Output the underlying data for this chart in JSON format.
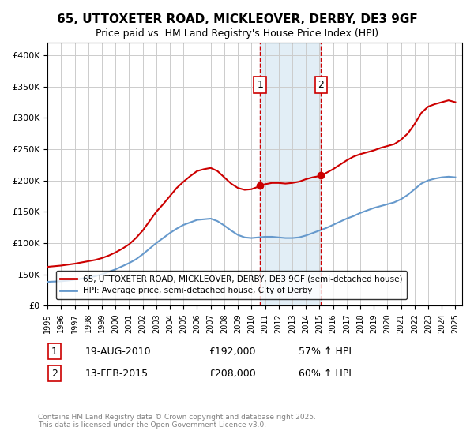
{
  "title": "65, UTTOXETER ROAD, MICKLEOVER, DERBY, DE3 9GF",
  "subtitle": "Price paid vs. HM Land Registry's House Price Index (HPI)",
  "xlabel": "",
  "ylabel": "",
  "ylim": [
    0,
    420000
  ],
  "xlim": [
    1995,
    2025.5
  ],
  "yticks": [
    0,
    50000,
    100000,
    150000,
    200000,
    250000,
    300000,
    350000,
    400000
  ],
  "ytick_labels": [
    "£0",
    "£50K",
    "£100K",
    "£150K",
    "£200K",
    "£250K",
    "£300K",
    "£350K",
    "£400K"
  ],
  "xticks": [
    1995,
    1996,
    1997,
    1998,
    1999,
    2000,
    2001,
    2002,
    2003,
    2004,
    2005,
    2006,
    2007,
    2008,
    2009,
    2010,
    2011,
    2012,
    2013,
    2014,
    2015,
    2016,
    2017,
    2018,
    2019,
    2020,
    2021,
    2022,
    2023,
    2024,
    2025
  ],
  "sale1_date": 2010.63,
  "sale1_price": 192000,
  "sale1_label": "1",
  "sale1_date_str": "19-AUG-2010",
  "sale1_hpi_pct": "57% ↑ HPI",
  "sale2_date": 2015.12,
  "sale2_price": 208000,
  "sale2_label": "2",
  "sale2_date_str": "13-FEB-2015",
  "sale2_hpi_pct": "60% ↑ HPI",
  "red_line_color": "#cc0000",
  "blue_line_color": "#6699cc",
  "shade_color": "#d0e4f0",
  "grid_color": "#cccccc",
  "background_color": "#ffffff",
  "legend1_label": "65, UTTOXETER ROAD, MICKLEOVER, DERBY, DE3 9GF (semi-detached house)",
  "legend2_label": "HPI: Average price, semi-detached house, City of Derby",
  "footnote": "Contains HM Land Registry data © Crown copyright and database right 2025.\nThis data is licensed under the Open Government Licence v3.0.",
  "red_x": [
    1995.0,
    1995.5,
    1996.0,
    1996.5,
    1997.0,
    1997.5,
    1998.0,
    1998.5,
    1999.0,
    1999.5,
    2000.0,
    2000.5,
    2001.0,
    2001.5,
    2002.0,
    2002.5,
    2003.0,
    2003.5,
    2004.0,
    2004.5,
    2005.0,
    2005.5,
    2006.0,
    2006.5,
    2007.0,
    2007.5,
    2008.0,
    2008.5,
    2009.0,
    2009.5,
    2010.0,
    2010.5,
    2010.63,
    2011.0,
    2011.5,
    2012.0,
    2012.5,
    2013.0,
    2013.5,
    2014.0,
    2014.5,
    2015.0,
    2015.12,
    2015.5,
    2016.0,
    2016.5,
    2017.0,
    2017.5,
    2018.0,
    2018.5,
    2019.0,
    2019.5,
    2020.0,
    2020.5,
    2021.0,
    2021.5,
    2022.0,
    2022.5,
    2023.0,
    2023.5,
    2024.0,
    2024.5,
    2025.0
  ],
  "red_y": [
    62000,
    63000,
    64000,
    65500,
    67000,
    69000,
    71000,
    73000,
    76000,
    80000,
    85000,
    91000,
    98000,
    108000,
    120000,
    135000,
    150000,
    162000,
    175000,
    188000,
    198000,
    207000,
    215000,
    218000,
    220000,
    215000,
    205000,
    195000,
    188000,
    185000,
    186000,
    190000,
    192000,
    194000,
    196000,
    196000,
    195000,
    196000,
    198000,
    202000,
    205000,
    207000,
    208000,
    212000,
    218000,
    225000,
    232000,
    238000,
    242000,
    245000,
    248000,
    252000,
    255000,
    258000,
    265000,
    275000,
    290000,
    308000,
    318000,
    322000,
    325000,
    328000,
    325000
  ],
  "blue_x": [
    1995.0,
    1995.5,
    1996.0,
    1996.5,
    1997.0,
    1997.5,
    1998.0,
    1998.5,
    1999.0,
    1999.5,
    2000.0,
    2000.5,
    2001.0,
    2001.5,
    2002.0,
    2002.5,
    2003.0,
    2003.5,
    2004.0,
    2004.5,
    2005.0,
    2005.5,
    2006.0,
    2006.5,
    2007.0,
    2007.5,
    2008.0,
    2008.5,
    2009.0,
    2009.5,
    2010.0,
    2010.5,
    2011.0,
    2011.5,
    2012.0,
    2012.5,
    2013.0,
    2013.5,
    2014.0,
    2014.5,
    2015.0,
    2015.5,
    2016.0,
    2016.5,
    2017.0,
    2017.5,
    2018.0,
    2018.5,
    2019.0,
    2019.5,
    2020.0,
    2020.5,
    2021.0,
    2021.5,
    2022.0,
    2022.5,
    2023.0,
    2023.5,
    2024.0,
    2024.5,
    2025.0
  ],
  "blue_y": [
    38000,
    38500,
    39000,
    40000,
    41500,
    43000,
    45000,
    47000,
    50000,
    54000,
    58000,
    63000,
    68000,
    74000,
    82000,
    91000,
    100000,
    108000,
    116000,
    123000,
    129000,
    133000,
    137000,
    138000,
    139000,
    135000,
    128000,
    120000,
    113000,
    109000,
    108000,
    109000,
    110000,
    110000,
    109000,
    108000,
    108000,
    109000,
    112000,
    116000,
    120000,
    124000,
    129000,
    134000,
    139000,
    143000,
    148000,
    152000,
    156000,
    159000,
    162000,
    165000,
    170000,
    177000,
    186000,
    195000,
    200000,
    203000,
    205000,
    206000,
    205000
  ]
}
